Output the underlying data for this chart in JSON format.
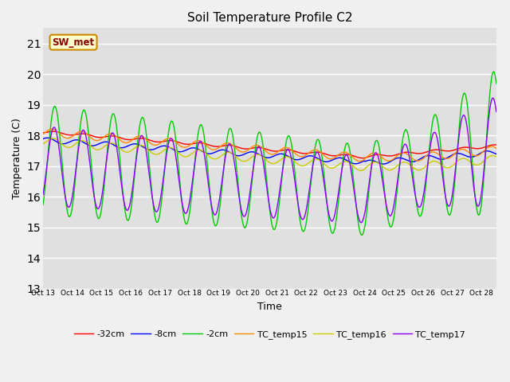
{
  "title": "Soil Temperature Profile C2",
  "xlabel": "Time",
  "ylabel": "Temperature (C)",
  "ylim": [
    13.0,
    21.5
  ],
  "yticks": [
    13.0,
    14.0,
    15.0,
    16.0,
    17.0,
    18.0,
    19.0,
    20.0,
    21.0
  ],
  "xtick_labels": [
    "Oct 13",
    "Oct 14",
    "Oct 15",
    "Oct 16",
    "Oct 17",
    "Oct 18",
    "Oct 19",
    "Oct 20",
    "Oct 21",
    "Oct 22",
    "Oct 23",
    "Oct 24",
    "Oct 25",
    "Oct 26",
    "Oct 27",
    "Oct 28"
  ],
  "annotation_text": "SW_met",
  "colors": {
    "neg32cm": "#ff0000",
    "neg8cm": "#0000ff",
    "neg2cm": "#00cc00",
    "TC_temp15": "#ff8c00",
    "TC_temp16": "#cccc00",
    "TC_temp17": "#8b00ff"
  },
  "legend_labels": [
    "-32cm",
    "-8cm",
    "-2cm",
    "TC_temp15",
    "TC_temp16",
    "TC_temp17"
  ],
  "fig_bg_color": "#f0f0f0",
  "plot_bg_color": "#e0e0e0"
}
